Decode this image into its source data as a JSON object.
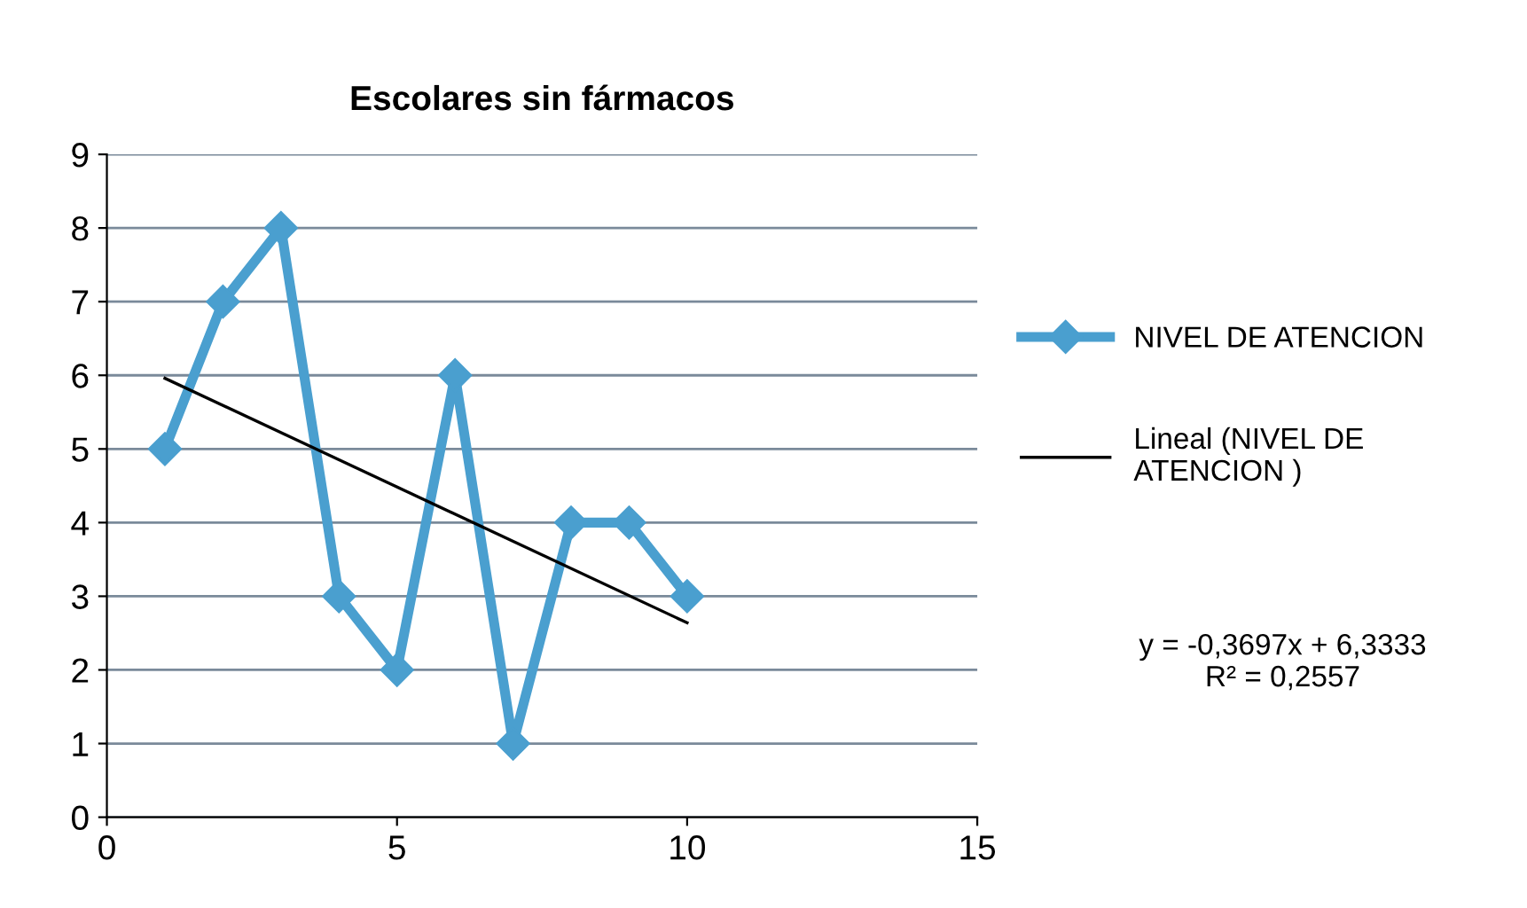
{
  "chart_data": {
    "type": "line",
    "title": "Escolares sin fármacos",
    "x": [
      1,
      2,
      3,
      4,
      5,
      6,
      7,
      8,
      9,
      10
    ],
    "series": [
      {
        "name": "NIVEL DE ATENCION",
        "color": "#4a9fcf",
        "values": [
          5,
          7,
          8,
          3,
          2,
          6,
          1,
          4,
          4,
          3
        ],
        "marker": "diamond"
      },
      {
        "name": "Lineal (NIVEL DE\nATENCION )",
        "color": "#000000",
        "x": [
          1,
          10
        ],
        "values": [
          5.96,
          2.64
        ],
        "marker": "none"
      }
    ],
    "xlim": [
      0,
      15
    ],
    "xticks": [
      0,
      5,
      10,
      15
    ],
    "ylim": [
      0,
      9
    ],
    "yticks": [
      0,
      1,
      2,
      3,
      4,
      5,
      6,
      7,
      8,
      9
    ],
    "grid": "y",
    "legend": "right",
    "annotations": [
      "y = -0,3697x + 6,3333\nR² = 0,2557"
    ]
  }
}
